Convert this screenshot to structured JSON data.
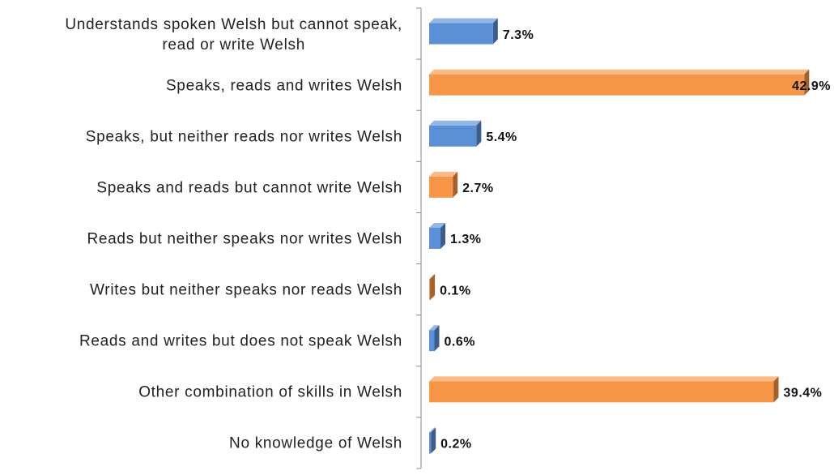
{
  "chart_data": {
    "type": "bar",
    "orientation": "horizontal",
    "categories": [
      "Understands spoken Welsh but cannot speak,\nread or write Welsh",
      "Speaks, reads and writes Welsh",
      "Speaks, but neither reads nor writes Welsh",
      "Speaks and reads but cannot write Welsh",
      "Reads but neither speaks nor writes Welsh",
      "Writes but neither speaks nor reads Welsh",
      "Reads and writes but does not speak Welsh",
      "Other combination of skills in Welsh",
      "No knowledge of Welsh"
    ],
    "values": [
      7.3,
      42.9,
      5.4,
      2.7,
      1.3,
      0.1,
      0.6,
      39.4,
      0.2
    ],
    "value_labels": [
      "7.3%",
      "42.9%",
      "5.4%",
      "2.7%",
      "1.3%",
      "0.1%",
      "0.6%",
      "39.4%",
      "0.2%"
    ],
    "colors": [
      "#5b8fd6",
      "#f79646",
      "#5b8fd6",
      "#f79646",
      "#5b8fd6",
      "#f79646",
      "#5b8fd6",
      "#f79646",
      "#5b8fd6"
    ],
    "xlim": [
      0,
      45
    ]
  }
}
